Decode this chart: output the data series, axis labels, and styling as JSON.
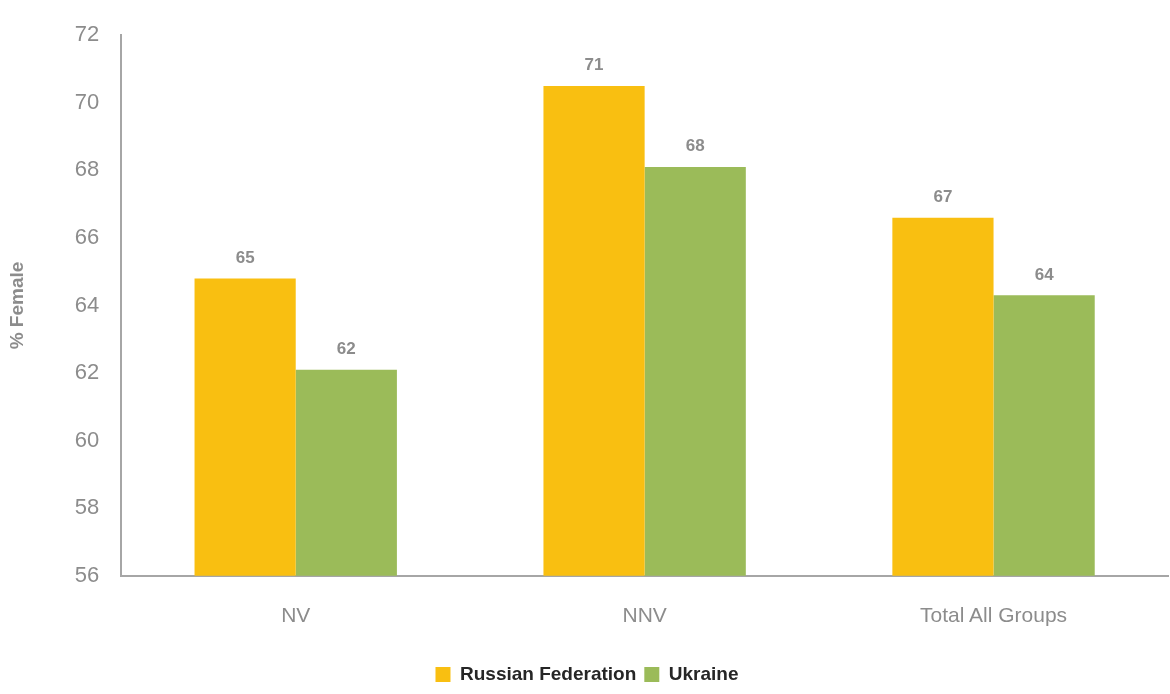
{
  "chart_data": {
    "type": "bar",
    "ylabel": "% Female",
    "categories": [
      "NV",
      "NNV",
      "Total All Groups"
    ],
    "series": [
      {
        "name": "Russian Federation",
        "color": "#f9bf11",
        "values": [
          64.8,
          70.5,
          66.6
        ],
        "value_labels": [
          "65",
          "71",
          "67"
        ]
      },
      {
        "name": "Ukraine",
        "color": "#9bbb59",
        "values": [
          62.1,
          68.1,
          64.3
        ],
        "value_labels": [
          "62",
          "68",
          "64"
        ]
      }
    ],
    "ylim": [
      56,
      72
    ],
    "yticks": [
      56,
      58,
      60,
      62,
      64,
      66,
      68,
      70,
      72
    ],
    "grid": false,
    "legend": "bottom"
  }
}
